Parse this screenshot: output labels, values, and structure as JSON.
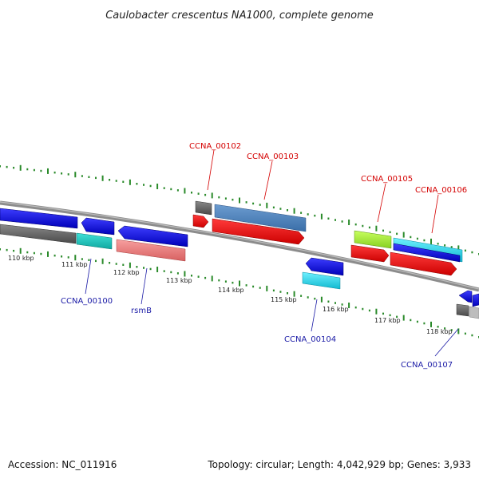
{
  "title": "Caulobacter crescentus NA1000, complete genome",
  "footer": {
    "accession": "Accession: NC_011916",
    "summary": "Topology: circular; Length: 4,042,929 bp; Genes: 3,933"
  },
  "ticks": [
    "110 kbp",
    "111 kbp",
    "112 kbp",
    "113 kbp",
    "114 kbp",
    "115 kbp",
    "116 kbp",
    "117 kbp",
    "118 kbp"
  ],
  "genes": {
    "forward": [
      "CCNA_00102",
      "CCNA_00103",
      "CCNA_00105",
      "CCNA_00106"
    ],
    "reverse": [
      "CCNA_00100",
      "rsmB",
      "CCNA_00104",
      "CCNA_00107"
    ]
  },
  "colors": {
    "forward_label": "#d40000",
    "reverse_label": "#1a1aa6",
    "gc_dots": "#2a8a2a",
    "backbone": "#8c8c8c"
  }
}
